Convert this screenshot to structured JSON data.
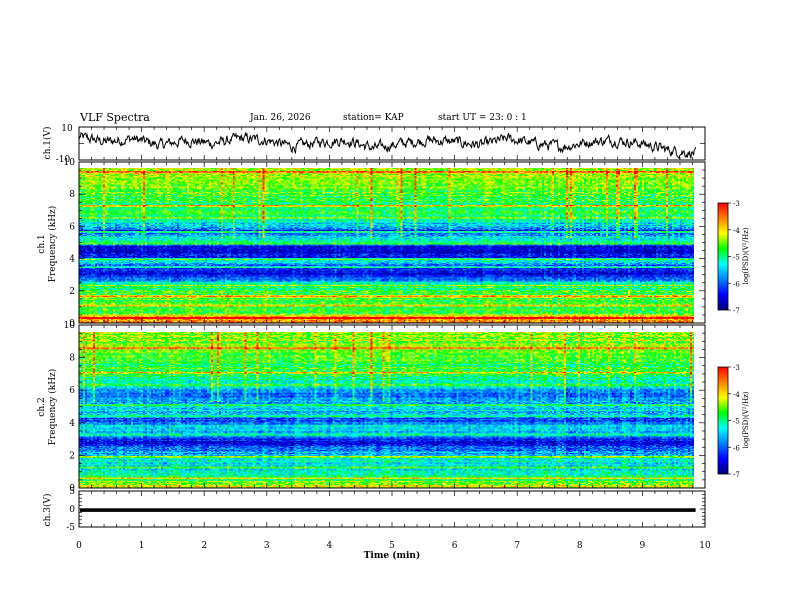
{
  "header": {
    "title": "VLF Spectra",
    "date": "Jan. 26, 2026",
    "station": "station= KAP",
    "start": "start  UT =   23: 0  : 1"
  },
  "colorbar": {
    "label_1": "log(PSD)(V²/Hz)",
    "label_2": "log(PSD)(V²/Hz)",
    "stops": [
      "#00007f",
      "#0000ff",
      "#0080ff",
      "#00ffff",
      "#00ff00",
      "#ffff00",
      "#ff8000",
      "#ff0000",
      "#ff8080",
      "#ffffff"
    ]
  },
  "chart_data": [
    {
      "type": "line",
      "panel": "ch1-waveform",
      "ylabel": "ch.1(V)",
      "ylim": [
        -10,
        10
      ],
      "yticks": [
        "10",
        "-10"
      ],
      "xlim": [
        0,
        10
      ],
      "x_end_data": 9.85,
      "series": [
        {
          "name": "ch.1",
          "trend_values": [
            4,
            1,
            3,
            -1,
            2,
            0,
            3,
            2,
            -2,
            1,
            2,
            -3,
            0,
            2,
            1,
            -1,
            3,
            0,
            -2,
            1,
            2,
            0,
            -4,
            -6
          ]
        }
      ]
    },
    {
      "type": "heatmap",
      "panel": "ch1-spectrogram",
      "ylabel": "ch.1",
      "ylabel2": "Frequency (kHz)",
      "ylim": [
        0,
        10
      ],
      "yticks": [
        "0",
        "2",
        "4",
        "6",
        "8",
        "10"
      ],
      "xlim": [
        0,
        10
      ],
      "x_end_data": 9.85,
      "colorbar_range": [
        -7,
        -3
      ],
      "colorbar_ticks": [
        "-3",
        "-4",
        "-5",
        "-6",
        "-7"
      ],
      "frequency_profile_logpsd": [
        [
          0.0,
          -3.6
        ],
        [
          0.3,
          -3.5
        ],
        [
          0.6,
          -4.6
        ],
        [
          1.0,
          -4.6
        ],
        [
          1.5,
          -4.7
        ],
        [
          2.0,
          -4.6
        ],
        [
          2.4,
          -5.0
        ],
        [
          2.7,
          -5.6
        ],
        [
          3.2,
          -6.6
        ],
        [
          3.6,
          -6.0
        ],
        [
          4.0,
          -5.4
        ],
        [
          4.3,
          -6.5
        ],
        [
          4.9,
          -6.7
        ],
        [
          5.2,
          -5.2
        ],
        [
          5.6,
          -5.4
        ],
        [
          6.0,
          -6.2
        ],
        [
          6.4,
          -5.4
        ],
        [
          7.0,
          -4.9
        ],
        [
          8.0,
          -4.8
        ],
        [
          9.0,
          -4.4
        ],
        [
          10.0,
          -4.1
        ]
      ],
      "line_frequencies_khz": [
        0.3,
        1.1,
        1.7,
        2.4,
        3.6,
        4.1,
        5.1,
        5.9,
        6.8,
        7.6,
        9.8
      ]
    },
    {
      "type": "heatmap",
      "panel": "ch2-spectrogram",
      "ylabel": "ch.2",
      "ylabel2": "Frequency (kHz)",
      "ylim": [
        0,
        10
      ],
      "yticks": [
        "0",
        "2",
        "4",
        "6",
        "8",
        "10"
      ],
      "xlim": [
        0,
        10
      ],
      "x_end_data": 9.85,
      "colorbar_range": [
        -7,
        -3
      ],
      "colorbar_ticks": [
        "-3",
        "-4",
        "-5",
        "-6",
        "-7"
      ],
      "frequency_profile_logpsd": [
        [
          0.0,
          -4.2
        ],
        [
          0.4,
          -4.6
        ],
        [
          0.8,
          -5.0
        ],
        [
          1.3,
          -5.5
        ],
        [
          1.8,
          -5.2
        ],
        [
          2.3,
          -5.8
        ],
        [
          2.8,
          -6.4
        ],
        [
          3.3,
          -6.1
        ],
        [
          3.8,
          -5.2
        ],
        [
          4.3,
          -6.2
        ],
        [
          4.9,
          -5.4
        ],
        [
          5.5,
          -5.6
        ],
        [
          6.0,
          -5.9
        ],
        [
          6.6,
          -5.3
        ],
        [
          7.2,
          -4.9
        ],
        [
          8.0,
          -4.8
        ],
        [
          9.0,
          -4.5
        ],
        [
          10.0,
          -4.3
        ]
      ],
      "line_frequencies_khz": [
        0.6,
        1.3,
        2.0,
        3.4,
        4.6,
        5.3,
        6.6,
        7.4,
        9.0
      ]
    },
    {
      "type": "line",
      "panel": "ch3-waveform",
      "ylabel": "ch.3(V)",
      "ylim": [
        -5,
        5
      ],
      "yticks": [
        "5",
        "0",
        "-5"
      ],
      "xlim": [
        0,
        10
      ],
      "x_end_data": 9.85,
      "series": [
        {
          "name": "ch.3",
          "band_center": -0.3,
          "band_halfwidth": 0.5
        }
      ]
    }
  ],
  "xaxis": {
    "label": "Time (min)",
    "ticks": [
      "0",
      "1",
      "2",
      "3",
      "4",
      "5",
      "6",
      "7",
      "8",
      "9",
      "10"
    ]
  }
}
